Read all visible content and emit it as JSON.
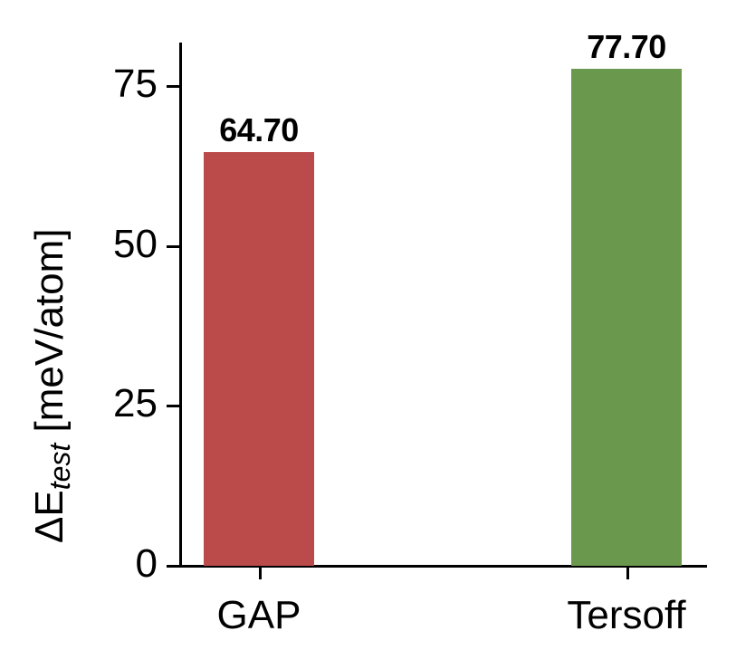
{
  "chart_data": {
    "type": "bar",
    "title": "",
    "xlabel": "",
    "ylabel": "ΔE_test [meV/atom]",
    "ylabel_parts": {
      "prefix": "ΔE",
      "subscript": "test",
      "suffix": " [meV/atom]"
    },
    "categories": [
      "GAP",
      "Tersoff"
    ],
    "values": [
      64.7,
      77.7
    ],
    "value_labels": [
      "64.70",
      "77.70"
    ],
    "colors": [
      "#bb4a4a",
      "#6a994e"
    ],
    "ylim": [
      0,
      82
    ],
    "yticks": [
      0,
      25,
      50,
      75
    ],
    "ytick_labels": [
      "0",
      "25",
      "50",
      "75"
    ],
    "grid": false,
    "legend": null
  }
}
